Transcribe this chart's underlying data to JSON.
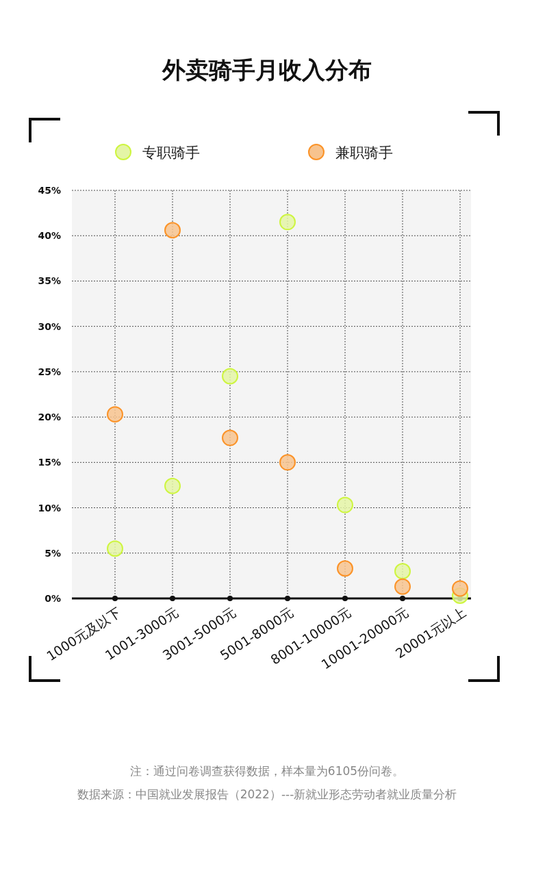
{
  "chart_data": {
    "type": "scatter",
    "title": "外卖骑手月收入分布",
    "categories": [
      "1000元及以下",
      "1001-3000元",
      "3001-5000元",
      "5001-8000元",
      "8001-10000元",
      "10001-20000元",
      "20001元以上"
    ],
    "series": [
      {
        "name": "专职骑手",
        "color": "#e4f5a6",
        "values": [
          5.5,
          12.4,
          24.5,
          41.5,
          10.3,
          3.0,
          0.3
        ]
      },
      {
        "name": "兼职骑手",
        "color": "#f7c38e",
        "values": [
          20.3,
          40.6,
          17.7,
          15.0,
          3.3,
          1.3,
          1.1
        ]
      }
    ],
    "ylim": [
      0,
      45
    ],
    "yticks": [
      {
        "value": 0,
        "label": "0%"
      },
      {
        "value": 5,
        "label": "5%"
      },
      {
        "value": 10,
        "label": "10%"
      },
      {
        "value": 15,
        "label": "15%"
      },
      {
        "value": 20,
        "label": "20%"
      },
      {
        "value": 25,
        "label": "25%"
      },
      {
        "value": 30,
        "label": "30%"
      },
      {
        "value": 35,
        "label": "35%"
      },
      {
        "value": 40,
        "label": "40%"
      },
      {
        "value": 45,
        "label": "45%"
      }
    ],
    "grid": true,
    "legend": "top",
    "marker": "circle",
    "annotations": [
      "注：通过问卷调查获得数据，样本量为6105份问卷。",
      "数据来源：中国就业发展报告（2022）---新就业形态劳动者就业质量分析"
    ]
  }
}
